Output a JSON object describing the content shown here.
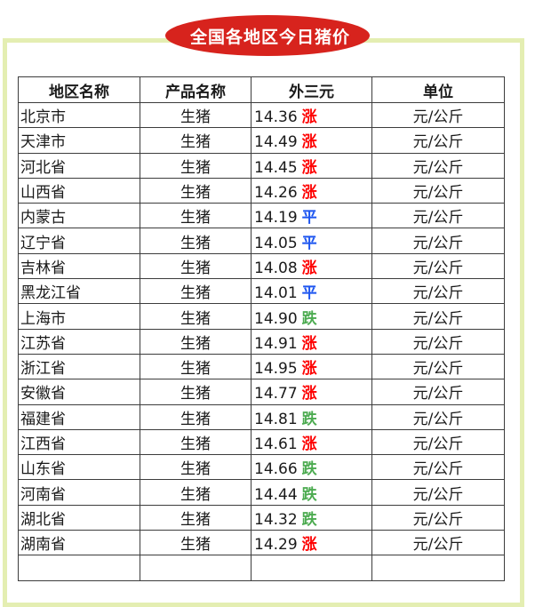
{
  "title_badge": {
    "text": "全国各地区今日猪价",
    "bg_color": "#d7231d",
    "text_color": "#ffffff"
  },
  "frame": {
    "border_color": "#e4eeb2"
  },
  "table": {
    "border_color": "#3c3c3c",
    "headers": [
      "地区名称",
      "产品名称",
      "外三元",
      "单位"
    ],
    "trend_colors": {
      "up": "#fe0000",
      "flat": "#1e56f0",
      "down": "#4cab50"
    },
    "rows": [
      {
        "region": "北京市",
        "product": "生猪",
        "price": "14.36",
        "trend": "涨",
        "trend_type": "up",
        "unit": "元/公斤"
      },
      {
        "region": "天津市",
        "product": "生猪",
        "price": "14.49",
        "trend": "涨",
        "trend_type": "up",
        "unit": "元/公斤"
      },
      {
        "region": "河北省",
        "product": "生猪",
        "price": "14.45",
        "trend": "涨",
        "trend_type": "up",
        "unit": "元/公斤"
      },
      {
        "region": "山西省",
        "product": "生猪",
        "price": "14.26",
        "trend": "涨",
        "trend_type": "up",
        "unit": "元/公斤"
      },
      {
        "region": "内蒙古",
        "product": "生猪",
        "price": "14.19",
        "trend": "平",
        "trend_type": "flat",
        "unit": "元/公斤"
      },
      {
        "region": "辽宁省",
        "product": "生猪",
        "price": "14.05",
        "trend": "平",
        "trend_type": "flat",
        "unit": "元/公斤"
      },
      {
        "region": "吉林省",
        "product": "生猪",
        "price": "14.08",
        "trend": "涨",
        "trend_type": "up",
        "unit": "元/公斤"
      },
      {
        "region": "黑龙江省",
        "product": "生猪",
        "price": "14.01",
        "trend": "平",
        "trend_type": "flat",
        "unit": "元/公斤"
      },
      {
        "region": "上海市",
        "product": "生猪",
        "price": "14.90",
        "trend": "跌",
        "trend_type": "down",
        "unit": "元/公斤"
      },
      {
        "region": "江苏省",
        "product": "生猪",
        "price": "14.91",
        "trend": "涨",
        "trend_type": "up",
        "unit": "元/公斤"
      },
      {
        "region": "浙江省",
        "product": "生猪",
        "price": "14.95",
        "trend": "涨",
        "trend_type": "up",
        "unit": "元/公斤"
      },
      {
        "region": "安徽省",
        "product": "生猪",
        "price": "14.77",
        "trend": "涨",
        "trend_type": "up",
        "unit": "元/公斤"
      },
      {
        "region": "福建省",
        "product": "生猪",
        "price": "14.81",
        "trend": "跌",
        "trend_type": "down",
        "unit": "元/公斤"
      },
      {
        "region": "江西省",
        "product": "生猪",
        "price": "14.61",
        "trend": "涨",
        "trend_type": "up",
        "unit": "元/公斤"
      },
      {
        "region": "山东省",
        "product": "生猪",
        "price": "14.66",
        "trend": "跌",
        "trend_type": "down",
        "unit": "元/公斤"
      },
      {
        "region": "河南省",
        "product": "生猪",
        "price": "14.44",
        "trend": "跌",
        "trend_type": "down",
        "unit": "元/公斤"
      },
      {
        "region": "湖北省",
        "product": "生猪",
        "price": "14.32",
        "trend": "跌",
        "trend_type": "down",
        "unit": "元/公斤"
      },
      {
        "region": "湖南省",
        "product": "生猪",
        "price": "14.29",
        "trend": "涨",
        "trend_type": "up",
        "unit": "元/公斤"
      },
      {
        "region": "",
        "product": "",
        "price": "",
        "trend": "",
        "trend_type": "",
        "unit": ""
      }
    ]
  },
  "chart_data": {
    "type": "table",
    "title": "全国各地区今日猪价",
    "columns": [
      "地区名称",
      "产品名称",
      "外三元",
      "单位"
    ],
    "rows": [
      [
        "北京市",
        "生猪",
        "14.36 涨",
        "元/公斤"
      ],
      [
        "天津市",
        "生猪",
        "14.49 涨",
        "元/公斤"
      ],
      [
        "河北省",
        "生猪",
        "14.45 涨",
        "元/公斤"
      ],
      [
        "山西省",
        "生猪",
        "14.26 涨",
        "元/公斤"
      ],
      [
        "内蒙古",
        "生猪",
        "14.19 平",
        "元/公斤"
      ],
      [
        "辽宁省",
        "生猪",
        "14.05 平",
        "元/公斤"
      ],
      [
        "吉林省",
        "生猪",
        "14.08 涨",
        "元/公斤"
      ],
      [
        "黑龙江省",
        "生猪",
        "14.01 平",
        "元/公斤"
      ],
      [
        "上海市",
        "生猪",
        "14.90 跌",
        "元/公斤"
      ],
      [
        "江苏省",
        "生猪",
        "14.91 涨",
        "元/公斤"
      ],
      [
        "浙江省",
        "生猪",
        "14.95 涨",
        "元/公斤"
      ],
      [
        "安徽省",
        "生猪",
        "14.77 涨",
        "元/公斤"
      ],
      [
        "福建省",
        "生猪",
        "14.81 跌",
        "元/公斤"
      ],
      [
        "江西省",
        "生猪",
        "14.61 涨",
        "元/公斤"
      ],
      [
        "山东省",
        "生猪",
        "14.66 跌",
        "元/公斤"
      ],
      [
        "河南省",
        "生猪",
        "14.44 跌",
        "元/公斤"
      ],
      [
        "湖北省",
        "生猪",
        "14.32 跌",
        "元/公斤"
      ],
      [
        "湖南省",
        "生猪",
        "14.29 涨",
        "元/公斤"
      ]
    ],
    "legend_note": "涨=up(red) 平=flat(blue) 跌=down(green)"
  }
}
